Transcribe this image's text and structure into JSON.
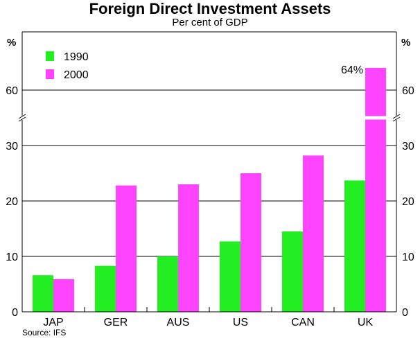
{
  "title": "Foreign Direct Investment Assets",
  "subtitle": "Per cent of GDP",
  "source": "Source: IFS",
  "chart_data": {
    "type": "bar",
    "title": "Foreign Direct Investment Assets",
    "subtitle": "Per cent of GDP",
    "categories": [
      "JAP",
      "GER",
      "AUS",
      "US",
      "CAN",
      "UK"
    ],
    "series": [
      {
        "name": "1990",
        "color": "#22ee22",
        "values": [
          6.6,
          8.3,
          10.0,
          12.7,
          14.5,
          23.7
        ]
      },
      {
        "name": "2000",
        "color": "#ff44ff",
        "values": [
          5.9,
          22.8,
          23.0,
          25.0,
          28.2,
          64
        ]
      }
    ],
    "unit_label": "%",
    "y_ticks_lower": [
      0,
      10,
      20,
      30
    ],
    "y_ticks_upper": [
      60
    ],
    "y_axis_break": [
      35,
      55
    ],
    "ylim": [
      0,
      70
    ],
    "grid": true,
    "legend": "top-left",
    "annotations": [
      {
        "category": "UK",
        "series": "2000",
        "text": "64%"
      }
    ],
    "source": "Source: IFS"
  }
}
